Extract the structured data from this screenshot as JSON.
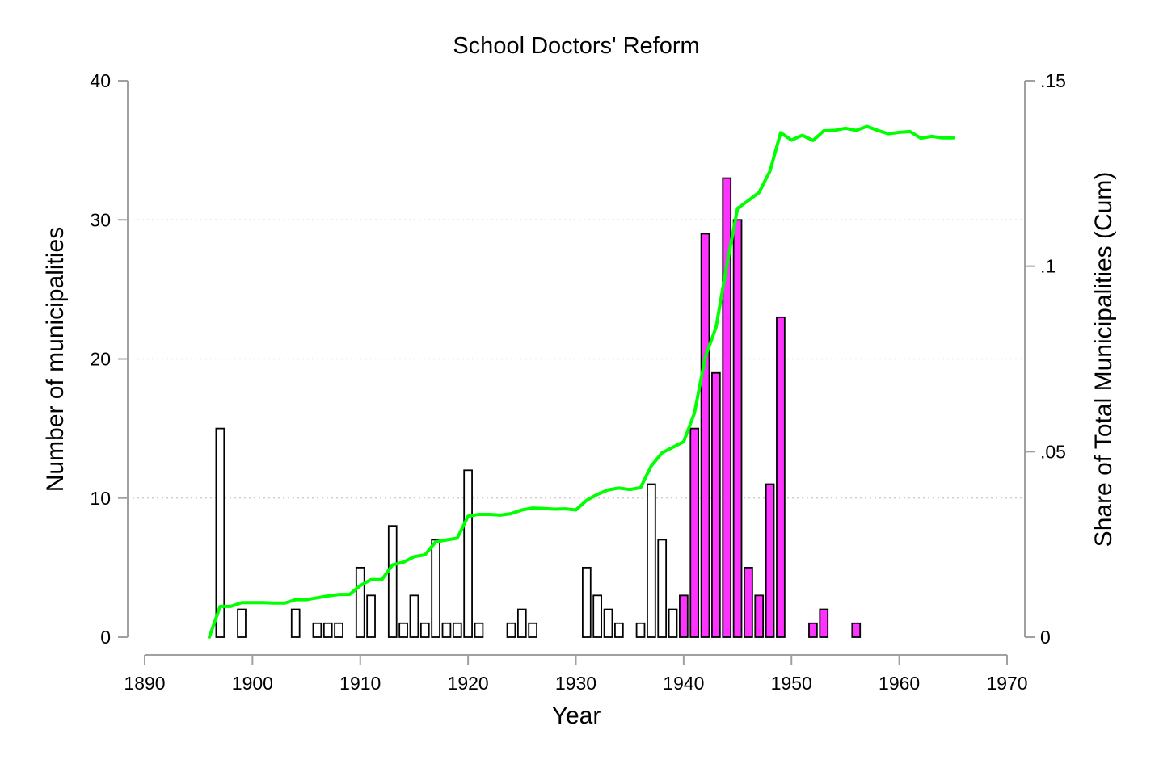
{
  "chart_data": {
    "type": "bar",
    "title": "School Doctors' Reform",
    "xlabel": "Year",
    "ylabel": "Number of municipalities",
    "y2label": "Share of Total Municipalities (Cum)",
    "xlim": [
      1890,
      1970
    ],
    "ylim": [
      0,
      40
    ],
    "y2lim": [
      0,
      0.15
    ],
    "x_ticks": [
      1890,
      1900,
      1910,
      1920,
      1930,
      1940,
      1950,
      1960,
      1970
    ],
    "y_ticks": [
      0,
      10,
      20,
      30,
      40
    ],
    "y_tick_labels": [
      "0",
      "10",
      "20",
      "30",
      "40"
    ],
    "y2_ticks": [
      0,
      0.05,
      0.1,
      0.15
    ],
    "y2_tick_labels": [
      "0",
      ".05",
      ".1",
      ".15"
    ],
    "grid": true,
    "colors": {
      "bars_before_1940": "#ffffff",
      "bars_1940_on": "#ff33ff",
      "bar_outline": "#000000",
      "cumulative_line": "#00ff00",
      "axis": "#a0a0a0"
    },
    "series": [
      {
        "type": "bar",
        "bars": [
          {
            "x": 1897,
            "value": 15
          },
          {
            "x": 1899,
            "value": 2
          },
          {
            "x": 1904,
            "value": 2
          },
          {
            "x": 1906,
            "value": 1
          },
          {
            "x": 1907,
            "value": 1
          },
          {
            "x": 1908,
            "value": 1
          },
          {
            "x": 1910,
            "value": 5
          },
          {
            "x": 1911,
            "value": 3
          },
          {
            "x": 1913,
            "value": 8
          },
          {
            "x": 1914,
            "value": 1
          },
          {
            "x": 1915,
            "value": 3
          },
          {
            "x": 1916,
            "value": 1
          },
          {
            "x": 1917,
            "value": 7
          },
          {
            "x": 1918,
            "value": 1
          },
          {
            "x": 1919,
            "value": 1
          },
          {
            "x": 1920,
            "value": 12
          },
          {
            "x": 1921,
            "value": 1
          },
          {
            "x": 1924,
            "value": 1
          },
          {
            "x": 1925,
            "value": 2
          },
          {
            "x": 1926,
            "value": 1
          },
          {
            "x": 1931,
            "value": 5
          },
          {
            "x": 1932,
            "value": 3
          },
          {
            "x": 1933,
            "value": 2
          },
          {
            "x": 1934,
            "value": 1
          },
          {
            "x": 1936,
            "value": 1
          },
          {
            "x": 1937,
            "value": 11
          },
          {
            "x": 1938,
            "value": 7
          },
          {
            "x": 1939,
            "value": 2
          },
          {
            "x": 1940,
            "value": 3
          },
          {
            "x": 1941,
            "value": 15
          },
          {
            "x": 1942,
            "value": 29
          },
          {
            "x": 1943,
            "value": 19
          },
          {
            "x": 1944,
            "value": 33
          },
          {
            "x": 1945,
            "value": 30
          },
          {
            "x": 1946,
            "value": 5
          },
          {
            "x": 1947,
            "value": 3
          },
          {
            "x": 1948,
            "value": 11
          },
          {
            "x": 1949,
            "value": 23
          },
          {
            "x": 1952,
            "value": 1
          },
          {
            "x": 1953,
            "value": 2
          },
          {
            "x": 1956,
            "value": 1
          }
        ]
      },
      {
        "type": "line",
        "axis": "right",
        "points": [
          [
            1896,
            0.0
          ],
          [
            1897,
            0.0083
          ],
          [
            1898,
            0.0083
          ],
          [
            1899,
            0.0093
          ],
          [
            1900,
            0.0093
          ],
          [
            1901,
            0.0093
          ],
          [
            1902,
            0.0092
          ],
          [
            1903,
            0.0092
          ],
          [
            1904,
            0.0101
          ],
          [
            1905,
            0.0101
          ],
          [
            1906,
            0.0106
          ],
          [
            1907,
            0.0111
          ],
          [
            1908,
            0.0115
          ],
          [
            1909,
            0.0115
          ],
          [
            1910,
            0.0139
          ],
          [
            1911,
            0.0155
          ],
          [
            1912,
            0.0155
          ],
          [
            1913,
            0.0195
          ],
          [
            1914,
            0.0202
          ],
          [
            1915,
            0.0217
          ],
          [
            1916,
            0.0222
          ],
          [
            1917,
            0.0257
          ],
          [
            1918,
            0.0262
          ],
          [
            1919,
            0.0267
          ],
          [
            1920,
            0.0326
          ],
          [
            1921,
            0.0331
          ],
          [
            1922,
            0.0331
          ],
          [
            1923,
            0.0329
          ],
          [
            1924,
            0.0333
          ],
          [
            1925,
            0.0343
          ],
          [
            1926,
            0.0348
          ],
          [
            1927,
            0.0347
          ],
          [
            1928,
            0.0345
          ],
          [
            1929,
            0.0346
          ],
          [
            1930,
            0.0343
          ],
          [
            1931,
            0.0369
          ],
          [
            1932,
            0.0385
          ],
          [
            1933,
            0.0397
          ],
          [
            1934,
            0.0402
          ],
          [
            1935,
            0.0398
          ],
          [
            1936,
            0.0403
          ],
          [
            1937,
            0.0462
          ],
          [
            1938,
            0.0497
          ],
          [
            1939,
            0.0512
          ],
          [
            1940,
            0.0527
          ],
          [
            1941,
            0.0604
          ],
          [
            1942,
            0.0755
          ],
          [
            1943,
            0.0835
          ],
          [
            1944,
            0.1002
          ],
          [
            1945,
            0.1156
          ],
          [
            1946,
            0.1177
          ],
          [
            1947,
            0.1199
          ],
          [
            1948,
            0.1256
          ],
          [
            1949,
            0.136
          ],
          [
            1950,
            0.134
          ],
          [
            1951,
            0.1353
          ],
          [
            1952,
            0.1339
          ],
          [
            1953,
            0.1365
          ],
          [
            1954,
            0.1366
          ],
          [
            1955,
            0.1372
          ],
          [
            1956,
            0.1366
          ],
          [
            1957,
            0.1377
          ],
          [
            1958,
            0.1366
          ],
          [
            1959,
            0.1357
          ],
          [
            1960,
            0.1361
          ],
          [
            1961,
            0.1363
          ],
          [
            1962,
            0.1345
          ],
          [
            1963,
            0.135
          ],
          [
            1964,
            0.1346
          ],
          [
            1965,
            0.1346
          ]
        ]
      }
    ]
  }
}
